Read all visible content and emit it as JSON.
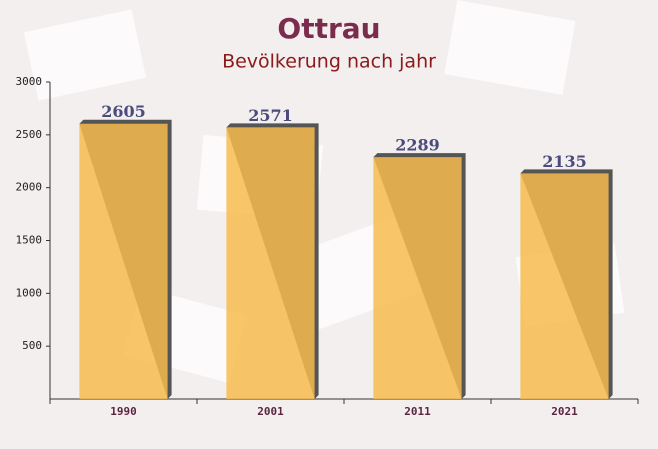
{
  "chart_data": {
    "type": "bar",
    "title": "Ottrau",
    "subtitle": "Bevölkerung nach jahr",
    "categories": [
      "1990",
      "2001",
      "2011",
      "2021"
    ],
    "values": [
      2605,
      2571,
      2289,
      2135
    ],
    "color": "#f7bb4f",
    "ylim": [
      0,
      3000
    ],
    "yticks": [
      500,
      1000,
      1500,
      2000,
      2500,
      3000
    ],
    "grid": false
  }
}
